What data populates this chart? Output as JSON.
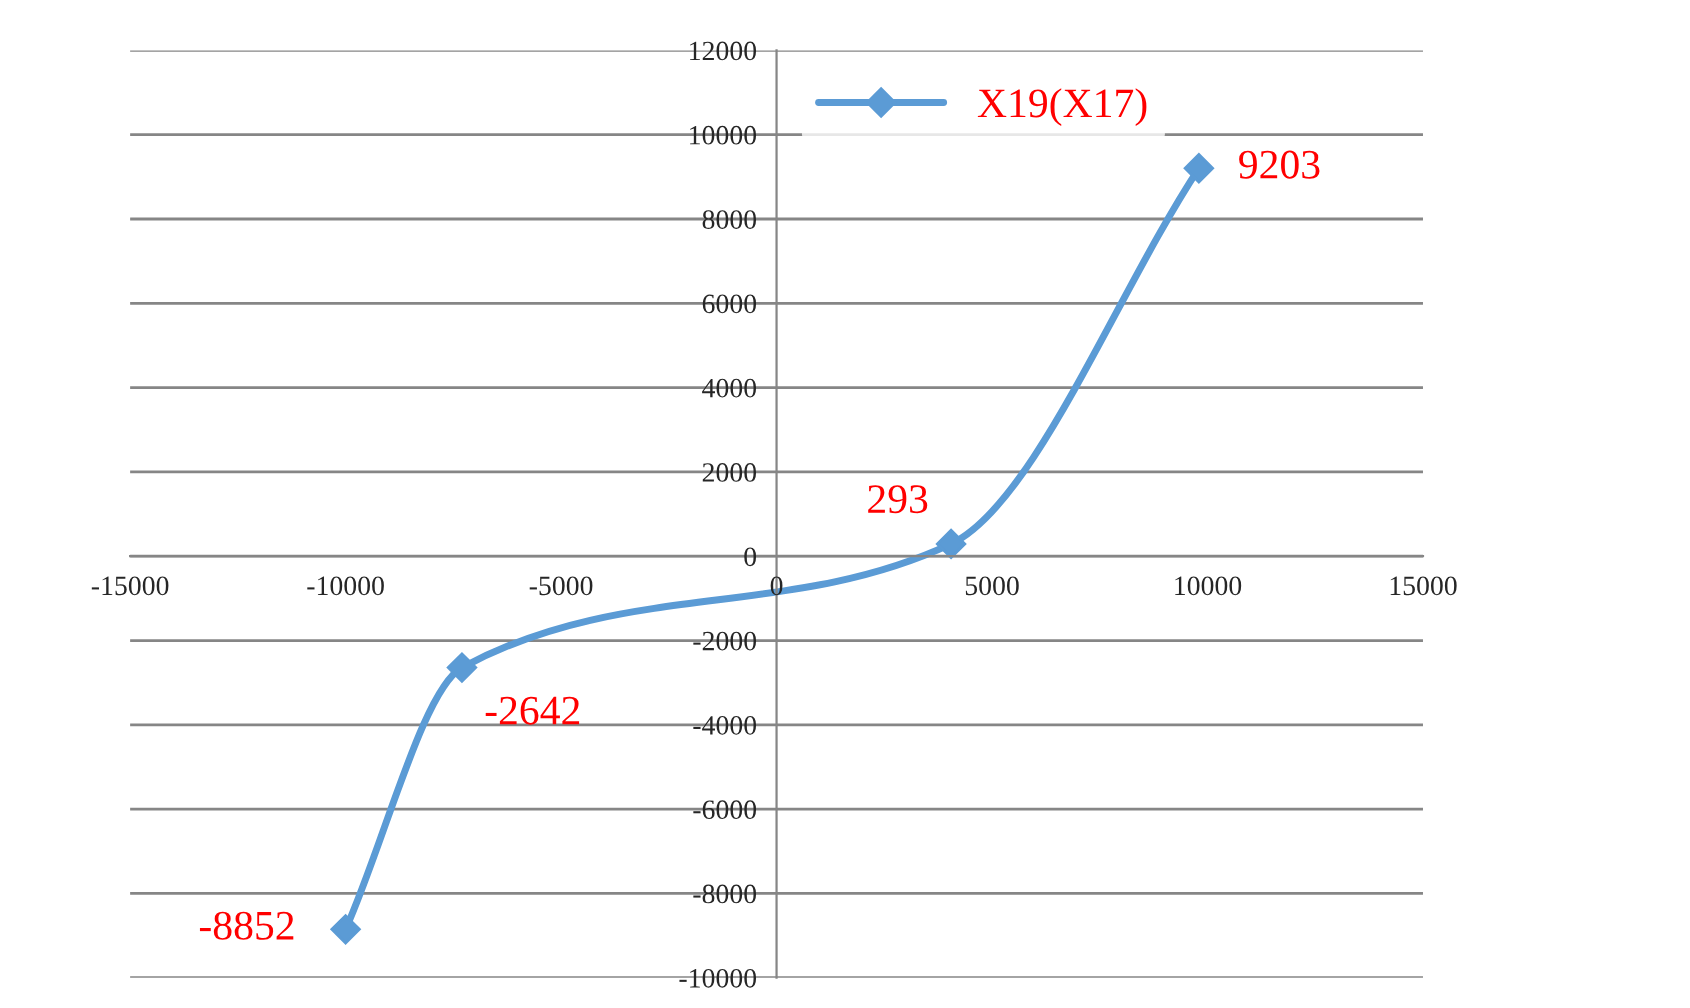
{
  "chart_data": {
    "type": "line",
    "x": [
      -10000,
      -7300,
      4050,
      9800
    ],
    "series": [
      {
        "name": "X19(X17)",
        "color": "#5b9bd5",
        "values": [
          -8852,
          -2642,
          293,
          9203
        ],
        "value_labels": [
          "-8852",
          "-2642",
          "293",
          "9203"
        ]
      }
    ],
    "xlim": [
      -15000,
      15000
    ],
    "xticks": [
      -15000,
      -10000,
      -5000,
      0,
      5000,
      10000,
      15000
    ],
    "ylim": [
      -10000,
      12000
    ],
    "yticks": [
      -10000,
      -8000,
      -6000,
      -4000,
      -2000,
      0,
      2000,
      4000,
      6000,
      8000,
      10000,
      12000
    ],
    "grid": "y",
    "legend": "top",
    "marker": "diamond",
    "line_style": "solid"
  }
}
